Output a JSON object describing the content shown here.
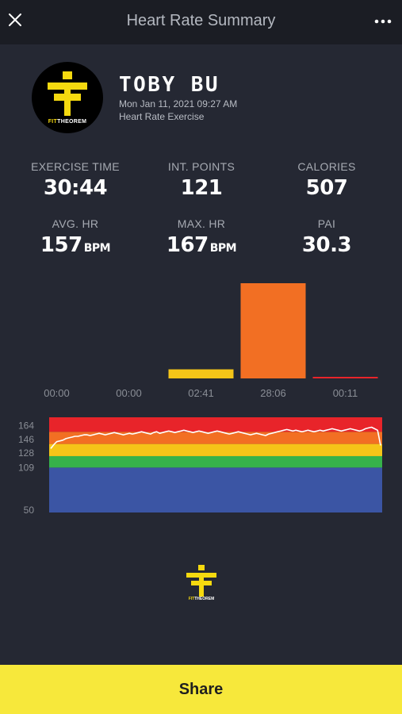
{
  "header": {
    "title": "Heart Rate Summary",
    "close_icon": "close-icon",
    "more_icon": "more-horizontal-icon"
  },
  "profile": {
    "avatar_brand_fit": "FIT",
    "avatar_brand_theorem": "THEOREM",
    "name": "TOBY BU",
    "date": "Mon Jan 11, 2021 09:27 AM",
    "workout_type": "Heart Rate Exercise"
  },
  "stats": {
    "exercise_time": {
      "label": "EXERCISE TIME",
      "value": "30:44"
    },
    "int_points": {
      "label": "INT. POINTS",
      "value": "121"
    },
    "calories": {
      "label": "CALORIES",
      "value": "507"
    },
    "avg_hr": {
      "label": "AVG. HR",
      "value": "157",
      "unit": "BPM"
    },
    "max_hr": {
      "label": "MAX. HR",
      "value": "167",
      "unit": "BPM"
    },
    "pai": {
      "label": "PAI",
      "value": "30.3"
    }
  },
  "chart_data": [
    {
      "type": "bar",
      "categories": [
        "00:00",
        "00:00",
        "02:41",
        "28:06",
        "00:11"
      ],
      "values": [
        0,
        0,
        161,
        1686,
        11
      ],
      "colors": [
        "#5b7ccf",
        "#3fb34f",
        "#f5c518",
        "#f26f23",
        "#e8242a"
      ],
      "grid": false
    },
    {
      "type": "line",
      "y_ticks": [
        "164",
        "146",
        "128",
        "109",
        "50"
      ],
      "ylim": [
        50,
        175
      ],
      "zones": [
        {
          "from": 50,
          "to": 109,
          "color": "#3b55a4"
        },
        {
          "from": 109,
          "to": 124,
          "color": "#36b24a"
        },
        {
          "from": 124,
          "to": 140,
          "color": "#f5c518"
        },
        {
          "from": 140,
          "to": 156,
          "color": "#f26f23"
        },
        {
          "from": 156,
          "to": 175,
          "color": "#e8242a"
        }
      ],
      "line_color": "#ffffff",
      "series": [
        {
          "values": [
            134,
            139,
            143,
            144,
            145,
            147,
            148,
            149,
            150,
            150,
            151,
            152,
            152,
            151,
            152,
            153,
            154,
            153,
            152,
            153,
            154,
            155,
            154,
            153,
            152,
            153,
            154,
            153,
            154,
            155,
            156,
            155,
            154,
            153,
            155,
            156,
            154,
            155,
            156,
            157,
            156,
            155,
            156,
            157,
            158,
            157,
            156,
            155,
            156,
            157,
            156,
            155,
            154,
            155,
            156,
            157,
            156,
            155,
            154,
            153,
            154,
            155,
            156,
            155,
            154,
            153,
            152,
            153,
            154,
            153,
            152,
            151,
            153,
            154,
            155,
            156,
            157,
            158,
            159,
            158,
            157,
            158,
            157,
            156,
            157,
            158,
            157,
            156,
            157,
            158,
            157,
            158,
            159,
            160,
            159,
            158,
            157,
            158,
            159,
            160,
            159,
            158,
            157,
            158,
            160,
            161,
            162,
            160,
            158,
            138
          ]
        }
      ]
    }
  ],
  "footer": {
    "brand_fit": "FIT",
    "brand_theorem": "THEOREM"
  },
  "share": {
    "label": "Share"
  }
}
